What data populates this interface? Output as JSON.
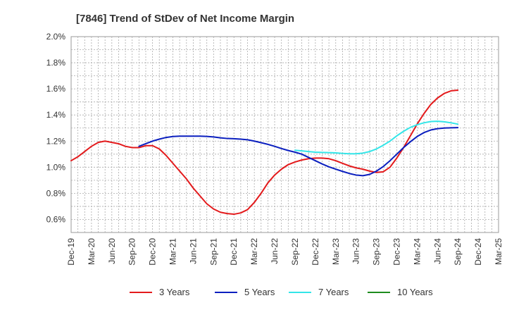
{
  "chart_data": {
    "type": "line",
    "title": "[7846]  Trend of StDev of Net Income Margin",
    "xlabel": "",
    "ylabel": "",
    "x": [
      "Dec-19",
      "Mar-20",
      "Jun-20",
      "Sep-20",
      "Dec-20",
      "Mar-21",
      "Jun-21",
      "Sep-21",
      "Dec-21",
      "Mar-22",
      "Jun-22",
      "Sep-22",
      "Dec-22",
      "Mar-23",
      "Jun-23",
      "Sep-23",
      "Dec-23",
      "Mar-24",
      "Jun-24",
      "Sep-24",
      "Dec-24",
      "Mar-25"
    ],
    "ylim": [
      0.5,
      2.0
    ],
    "y_ticks": [
      "0.6%",
      "0.8%",
      "1.0%",
      "1.2%",
      "1.4%",
      "1.6%",
      "1.8%",
      "2.0%"
    ],
    "y_tick_values": [
      0.6,
      0.8,
      1.0,
      1.2,
      1.4,
      1.6,
      1.8,
      2.0
    ],
    "grid": true,
    "legend_position": "bottom",
    "series": [
      {
        "name": "3 Years",
        "color": "#e31a1c",
        "points": [
          [
            0,
            1.05
          ],
          [
            0.333,
            1.08
          ],
          [
            0.667,
            1.12
          ],
          [
            1,
            1.16
          ],
          [
            1.333,
            1.19
          ],
          [
            1.667,
            1.2
          ],
          [
            2,
            1.19
          ],
          [
            2.333,
            1.18
          ],
          [
            2.667,
            1.16
          ],
          [
            3,
            1.15
          ],
          [
            3.333,
            1.15
          ],
          [
            3.667,
            1.165
          ],
          [
            4,
            1.165
          ],
          [
            4.333,
            1.14
          ],
          [
            4.667,
            1.09
          ],
          [
            5,
            1.03
          ],
          [
            5.333,
            0.97
          ],
          [
            5.667,
            0.91
          ],
          [
            6,
            0.84
          ],
          [
            6.333,
            0.78
          ],
          [
            6.667,
            0.72
          ],
          [
            7,
            0.68
          ],
          [
            7.333,
            0.655
          ],
          [
            7.667,
            0.645
          ],
          [
            8,
            0.64
          ],
          [
            8.333,
            0.65
          ],
          [
            8.667,
            0.675
          ],
          [
            9,
            0.73
          ],
          [
            9.333,
            0.8
          ],
          [
            9.667,
            0.88
          ],
          [
            10,
            0.94
          ],
          [
            10.333,
            0.985
          ],
          [
            10.667,
            1.02
          ],
          [
            11,
            1.04
          ],
          [
            11.333,
            1.055
          ],
          [
            11.667,
            1.065
          ],
          [
            12,
            1.07
          ],
          [
            12.333,
            1.07
          ],
          [
            12.667,
            1.065
          ],
          [
            13,
            1.05
          ],
          [
            13.333,
            1.03
          ],
          [
            13.667,
            1.01
          ],
          [
            14,
            0.995
          ],
          [
            14.333,
            0.985
          ],
          [
            14.667,
            0.97
          ],
          [
            15,
            0.96
          ],
          [
            15.333,
            0.965
          ],
          [
            15.667,
            1.0
          ],
          [
            16,
            1.07
          ],
          [
            16.333,
            1.15
          ],
          [
            16.667,
            1.24
          ],
          [
            17,
            1.33
          ],
          [
            17.333,
            1.41
          ],
          [
            17.667,
            1.48
          ],
          [
            18,
            1.53
          ],
          [
            18.333,
            1.565
          ],
          [
            18.667,
            1.585
          ],
          [
            19,
            1.59
          ]
        ]
      },
      {
        "name": "5 Years",
        "color": "#0b1fbf",
        "points": [
          [
            3.333,
            1.16
          ],
          [
            3.667,
            1.18
          ],
          [
            4,
            1.2
          ],
          [
            4.333,
            1.215
          ],
          [
            4.667,
            1.228
          ],
          [
            5,
            1.235
          ],
          [
            5.333,
            1.238
          ],
          [
            5.667,
            1.238
          ],
          [
            6,
            1.238
          ],
          [
            6.333,
            1.238
          ],
          [
            6.667,
            1.236
          ],
          [
            7,
            1.232
          ],
          [
            7.333,
            1.225
          ],
          [
            7.667,
            1.22
          ],
          [
            8,
            1.218
          ],
          [
            8.333,
            1.215
          ],
          [
            8.667,
            1.21
          ],
          [
            9,
            1.2
          ],
          [
            9.333,
            1.188
          ],
          [
            9.667,
            1.175
          ],
          [
            10,
            1.16
          ],
          [
            10.333,
            1.143
          ],
          [
            10.667,
            1.128
          ],
          [
            11,
            1.115
          ],
          [
            11.333,
            1.1
          ],
          [
            11.667,
            1.075
          ],
          [
            12,
            1.05
          ],
          [
            12.333,
            1.025
          ],
          [
            12.667,
            1.003
          ],
          [
            13,
            0.985
          ],
          [
            13.333,
            0.968
          ],
          [
            13.667,
            0.952
          ],
          [
            14,
            0.94
          ],
          [
            14.333,
            0.935
          ],
          [
            14.667,
            0.945
          ],
          [
            15,
            0.97
          ],
          [
            15.333,
            1.005
          ],
          [
            15.667,
            1.05
          ],
          [
            16,
            1.1
          ],
          [
            16.333,
            1.15
          ],
          [
            16.667,
            1.195
          ],
          [
            17,
            1.235
          ],
          [
            17.333,
            1.265
          ],
          [
            17.667,
            1.285
          ],
          [
            18,
            1.295
          ],
          [
            18.333,
            1.3
          ],
          [
            18.667,
            1.302
          ],
          [
            19,
            1.303
          ]
        ]
      },
      {
        "name": "7 Years",
        "color": "#33e5e8",
        "points": [
          [
            11,
            1.13
          ],
          [
            11.333,
            1.125
          ],
          [
            11.667,
            1.12
          ],
          [
            12,
            1.115
          ],
          [
            12.333,
            1.113
          ],
          [
            12.667,
            1.112
          ],
          [
            13,
            1.11
          ],
          [
            13.333,
            1.106
          ],
          [
            13.667,
            1.103
          ],
          [
            14,
            1.103
          ],
          [
            14.333,
            1.108
          ],
          [
            14.667,
            1.12
          ],
          [
            15,
            1.14
          ],
          [
            15.333,
            1.168
          ],
          [
            15.667,
            1.2
          ],
          [
            16,
            1.24
          ],
          [
            16.333,
            1.275
          ],
          [
            16.667,
            1.305
          ],
          [
            17,
            1.325
          ],
          [
            17.333,
            1.34
          ],
          [
            17.667,
            1.35
          ],
          [
            18,
            1.352
          ],
          [
            18.333,
            1.348
          ],
          [
            18.667,
            1.34
          ],
          [
            19,
            1.33
          ]
        ]
      },
      {
        "name": "10 Years",
        "color": "#1e8c1e",
        "points": []
      }
    ]
  }
}
